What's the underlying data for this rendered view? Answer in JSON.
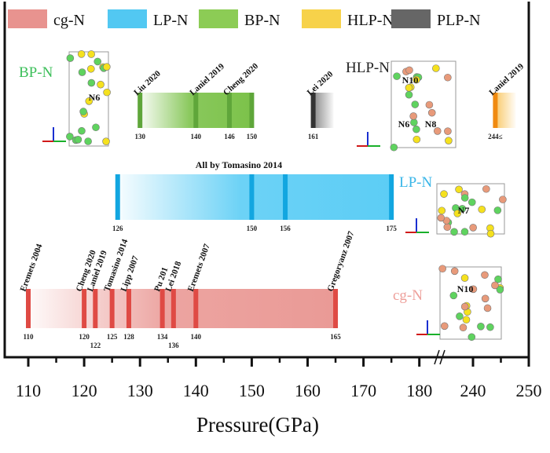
{
  "chart_data": {
    "type": "bar",
    "xlabel": "Pressure(GPa)",
    "x_ticks": [
      "110",
      "120",
      "130",
      "140",
      "150",
      "160",
      "170",
      "180",
      "240",
      "250"
    ],
    "axis_break": [
      183,
      237
    ],
    "legend": [
      {
        "name": "cg-N",
        "color": "#e8938f"
      },
      {
        "name": "LP-N",
        "color": "#52c8f2"
      },
      {
        "name": "BP-N",
        "color": "#8ccc55"
      },
      {
        "name": "HLP-N",
        "color": "#f7d24a"
      },
      {
        "name": "PLP-N",
        "color": "#666666"
      }
    ],
    "phases": [
      {
        "name": "BP-N",
        "label": "BP-N",
        "label_color": "#3cbf5a",
        "bar_color": "#7cc24a",
        "line_color": "#5fa63a",
        "range": [
          130,
          150
        ],
        "fade": "left",
        "markers": [
          {
            "p": 130,
            "tick": "130",
            "ref": "Liu 2020"
          },
          {
            "p": 140,
            "tick": "140",
            "ref": "Laniel 2019"
          },
          {
            "p": 146,
            "tick": "146",
            "ref": "Cheng 2020"
          },
          {
            "p": 150,
            "tick": "150",
            "ref": ""
          }
        ],
        "structure_labels": [
          "N6"
        ]
      },
      {
        "name": "PLP-N",
        "label": "",
        "bar_color": "#888888",
        "line_color": "#333333",
        "range": [
          161,
          164
        ],
        "fade": "right",
        "markers": [
          {
            "p": 161,
            "tick": "161",
            "ref": "Lei 2020"
          }
        ]
      },
      {
        "name": "HLP-N",
        "label": "HLP-N",
        "label_color": "#222222",
        "bar_color": "#f9c96a",
        "line_color": "#f08a10",
        "range": [
          244,
          248
        ],
        "fade": "right",
        "markers": [
          {
            "p": 244,
            "tick": "244≤",
            "ref": "Laniel 2019"
          }
        ],
        "structure_labels": [
          "N10",
          "N6",
          "N8"
        ]
      },
      {
        "name": "LP-N",
        "label": "LP-N",
        "label_color": "#3ab6e8",
        "bar_color": "#5ccdf5",
        "line_color": "#12a6e0",
        "range": [
          126,
          175
        ],
        "fade": "left",
        "title": "All by Tomasino 2014",
        "markers": [
          {
            "p": 126,
            "tick": "126",
            "ref": ""
          },
          {
            "p": 150,
            "tick": "150",
            "ref": ""
          },
          {
            "p": 156,
            "tick": "156",
            "ref": ""
          },
          {
            "p": 175,
            "tick": "175",
            "ref": ""
          }
        ],
        "structure_labels": [
          "N7"
        ]
      },
      {
        "name": "cg-N",
        "label": "cg-N",
        "label_color": "#eea09b",
        "bar_color": "#ea9a96",
        "line_color": "#df4a44",
        "range": [
          110,
          165
        ],
        "fade": "left",
        "markers": [
          {
            "p": 110,
            "tick": "110",
            "ref": "Eremets 2004"
          },
          {
            "p": 120,
            "tick": "120",
            "ref": "Cheng 2020"
          },
          {
            "p": 122,
            "tick": "122",
            "ref": "Laniel 2019"
          },
          {
            "p": 125,
            "tick": "125",
            "ref": "Tomasino 2014"
          },
          {
            "p": 128,
            "tick": "128",
            "ref": "Lipp 2007"
          },
          {
            "p": 134,
            "tick": "134",
            "ref": "Pu 201"
          },
          {
            "p": 136,
            "tick": "136",
            "ref": "Lei 2018"
          },
          {
            "p": 140,
            "tick": "140",
            "ref": "Eremets 2007"
          },
          {
            "p": 165,
            "tick": "165",
            "ref": "Gregoryanz 2007"
          }
        ],
        "structure_labels": [
          "N10"
        ]
      }
    ]
  }
}
